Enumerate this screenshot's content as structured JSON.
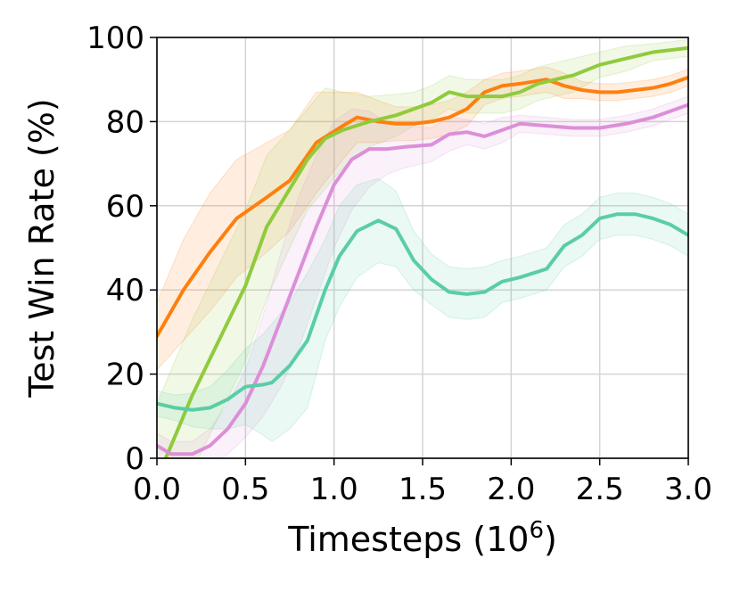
{
  "chart_data": {
    "type": "line",
    "xlabel": "Timesteps (10",
    "xlabel_sup": "6",
    "xlabel_close": ")",
    "ylabel": "Test Win Rate (%)",
    "xlim": [
      0,
      3.0
    ],
    "ylim": [
      0,
      100
    ],
    "xticks": [
      "0.0",
      "0.5",
      "1.0",
      "1.5",
      "2.0",
      "2.5",
      "3.0"
    ],
    "yticks": [
      "0",
      "20",
      "40",
      "60",
      "80",
      "100"
    ],
    "grid": true,
    "legend": "none",
    "series": [
      {
        "color": "#ff7f0e",
        "x": [
          0.0,
          0.15,
          0.3,
          0.45,
          0.62,
          0.75,
          0.9,
          1.05,
          1.13,
          1.25,
          1.35,
          1.45,
          1.55,
          1.65,
          1.75,
          1.85,
          1.95,
          2.05,
          2.2,
          2.3,
          2.4,
          2.5,
          2.6,
          2.7,
          2.8,
          2.9,
          3.0
        ],
        "y": [
          29,
          40,
          49,
          57,
          62,
          66,
          75,
          79,
          81,
          80,
          79.5,
          79.5,
          80,
          81,
          83,
          87,
          88.5,
          89,
          90,
          88.5,
          87.5,
          87,
          87,
          87.5,
          88,
          89,
          90.5
        ],
        "band": [
          8,
          12,
          14,
          14,
          13,
          12,
          12,
          8,
          6,
          5,
          4,
          4,
          4,
          4,
          4,
          3,
          3,
          3,
          3,
          3,
          2,
          2,
          2,
          2,
          2,
          2,
          2
        ]
      },
      {
        "color": "#8fcb3c",
        "x": [
          0.0,
          0.05,
          0.2,
          0.35,
          0.5,
          0.62,
          0.75,
          0.85,
          0.95,
          1.05,
          1.2,
          1.35,
          1.45,
          1.55,
          1.65,
          1.75,
          1.85,
          1.95,
          2.05,
          2.15,
          2.25,
          2.35,
          2.5,
          2.65,
          2.8,
          3.0
        ],
        "y": [
          -5,
          0,
          15,
          28,
          41,
          55,
          64,
          71,
          76,
          78,
          80,
          81.5,
          83,
          84.5,
          87,
          86,
          86,
          86,
          87,
          89,
          90,
          91,
          93.5,
          95,
          96.5,
          97.5
        ],
        "band": [
          18,
          18,
          18,
          18,
          18,
          17,
          14,
          12,
          12,
          9,
          6,
          5,
          4,
          4,
          4,
          4,
          4,
          4,
          4,
          4,
          4,
          4,
          3,
          3,
          2,
          2
        ]
      },
      {
        "color": "#dc8fd8",
        "x": [
          0.0,
          0.08,
          0.2,
          0.3,
          0.4,
          0.5,
          0.6,
          0.7,
          0.8,
          0.9,
          1.0,
          1.1,
          1.2,
          1.3,
          1.4,
          1.55,
          1.65,
          1.75,
          1.85,
          1.95,
          2.05,
          2.2,
          2.35,
          2.5,
          2.65,
          2.8,
          3.0
        ],
        "y": [
          3,
          1,
          1,
          3,
          7,
          13,
          22,
          33,
          44,
          55,
          65,
          71,
          73.5,
          73.5,
          74,
          74.5,
          77,
          77.5,
          76.5,
          78,
          79.5,
          79,
          78.5,
          78.5,
          79.5,
          81,
          84
        ],
        "band": [
          3,
          3,
          3,
          4,
          6,
          8,
          12,
          16,
          18,
          17,
          15,
          12,
          9,
          6,
          5,
          4,
          4,
          3,
          3,
          3,
          2,
          2,
          2,
          2,
          2,
          2,
          2
        ]
      },
      {
        "color": "#5acda6",
        "x": [
          0.0,
          0.1,
          0.2,
          0.3,
          0.4,
          0.5,
          0.6,
          0.65,
          0.75,
          0.85,
          0.95,
          1.03,
          1.13,
          1.25,
          1.35,
          1.45,
          1.55,
          1.65,
          1.75,
          1.85,
          1.95,
          2.05,
          2.2,
          2.3,
          2.4,
          2.5,
          2.6,
          2.7,
          2.8,
          2.9,
          3.0
        ],
        "y": [
          13,
          12,
          11.5,
          12,
          14,
          17,
          17.5,
          18,
          22,
          28,
          40,
          48,
          54,
          56.5,
          54.5,
          47,
          42.5,
          39.5,
          39,
          39.5,
          42,
          43,
          45,
          50.5,
          53,
          57,
          58,
          58,
          57,
          55.5,
          53
        ],
        "band": [
          3,
          3,
          4,
          5,
          7,
          9,
          12,
          14,
          15,
          16,
          12,
          12,
          11,
          10,
          9,
          7,
          6,
          6,
          6,
          6,
          5,
          5,
          5,
          5,
          5,
          5,
          5,
          5,
          5,
          5,
          5
        ]
      }
    ]
  }
}
